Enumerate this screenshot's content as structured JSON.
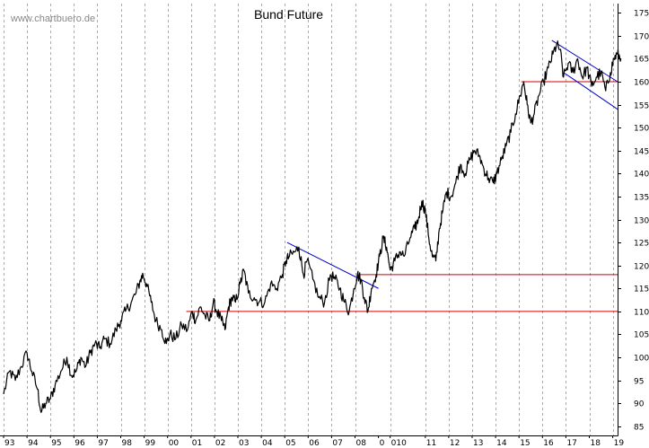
{
  "chart_data": {
    "type": "line",
    "title": "Bund Future",
    "source_label": "www.chartbuero.de",
    "ylim": [
      83,
      177
    ],
    "y_ticks": [
      85,
      90,
      95,
      100,
      105,
      110,
      115,
      120,
      125,
      130,
      135,
      140,
      145,
      150,
      155,
      160,
      165,
      170,
      175
    ],
    "x_range": [
      1993.0,
      2019.9
    ],
    "x_ticks": [
      {
        "label": "93",
        "x": 1993
      },
      {
        "label": "94",
        "x": 1994
      },
      {
        "label": "95",
        "x": 1995
      },
      {
        "label": "96",
        "x": 1996
      },
      {
        "label": "97",
        "x": 1997
      },
      {
        "label": "98",
        "x": 1998
      },
      {
        "label": "99",
        "x": 1999
      },
      {
        "label": "00",
        "x": 2000
      },
      {
        "label": "01",
        "x": 2001
      },
      {
        "label": "02",
        "x": 2002
      },
      {
        "label": "03",
        "x": 2003
      },
      {
        "label": "04",
        "x": 2004
      },
      {
        "label": "05",
        "x": 2005
      },
      {
        "label": "06",
        "x": 2006
      },
      {
        "label": "07",
        "x": 2007
      },
      {
        "label": "08",
        "x": 2008
      },
      {
        "label": "0",
        "x": 2009
      },
      {
        "label": "010",
        "x": 2009.5
      },
      {
        "label": "11",
        "x": 2011
      },
      {
        "label": "12",
        "x": 2012
      },
      {
        "label": "13",
        "x": 2013
      },
      {
        "label": "14",
        "x": 2014
      },
      {
        "label": "15",
        "x": 2015
      },
      {
        "label": "16",
        "x": 2016
      },
      {
        "label": "17",
        "x": 2017
      },
      {
        "label": "18",
        "x": 2018
      },
      {
        "label": "19",
        "x": 2019
      }
    ],
    "grid": {
      "vertical": true,
      "horizontal": false
    },
    "series": [
      {
        "color": "#000000",
        "points": [
          [
            1993.0,
            92
          ],
          [
            1993.25,
            97
          ],
          [
            1993.5,
            95
          ],
          [
            1993.75,
            98
          ],
          [
            1994.0,
            101
          ],
          [
            1994.2,
            97
          ],
          [
            1994.45,
            93
          ],
          [
            1994.6,
            88
          ],
          [
            1994.8,
            90
          ],
          [
            1995.0,
            91
          ],
          [
            1995.2,
            94
          ],
          [
            1995.45,
            97
          ],
          [
            1995.7,
            100
          ],
          [
            1995.9,
            96
          ],
          [
            1996.1,
            97
          ],
          [
            1996.3,
            100
          ],
          [
            1996.5,
            98
          ],
          [
            1996.7,
            101
          ],
          [
            1996.9,
            103
          ],
          [
            1997.1,
            102
          ],
          [
            1997.3,
            104
          ],
          [
            1997.55,
            103
          ],
          [
            1997.8,
            106
          ],
          [
            1998.0,
            108
          ],
          [
            1998.2,
            110
          ],
          [
            1998.45,
            112
          ],
          [
            1998.65,
            114
          ],
          [
            1998.85,
            117
          ],
          [
            1998.95,
            118
          ],
          [
            1999.1,
            116
          ],
          [
            1999.3,
            112
          ],
          [
            1999.5,
            108
          ],
          [
            1999.75,
            106
          ],
          [
            1999.95,
            103
          ],
          [
            2000.1,
            105
          ],
          [
            2000.35,
            104
          ],
          [
            2000.6,
            107
          ],
          [
            2000.85,
            106
          ],
          [
            2001.05,
            110
          ],
          [
            2001.2,
            108
          ],
          [
            2001.4,
            111
          ],
          [
            2001.6,
            109
          ],
          [
            2001.8,
            108
          ],
          [
            2001.95,
            112
          ],
          [
            2002.1,
            110
          ],
          [
            2002.3,
            108
          ],
          [
            2002.45,
            106
          ],
          [
            2002.6,
            111
          ],
          [
            2002.75,
            113
          ],
          [
            2002.9,
            112
          ],
          [
            2003.1,
            116
          ],
          [
            2003.25,
            119
          ],
          [
            2003.45,
            114
          ],
          [
            2003.7,
            113
          ],
          [
            2003.9,
            112
          ],
          [
            2004.15,
            112
          ],
          [
            2004.4,
            116
          ],
          [
            2004.65,
            115
          ],
          [
            2004.9,
            118
          ],
          [
            2005.05,
            121
          ],
          [
            2005.2,
            122
          ],
          [
            2005.45,
            123
          ],
          [
            2005.6,
            124
          ],
          [
            2005.8,
            118
          ],
          [
            2005.95,
            121
          ],
          [
            2006.2,
            117
          ],
          [
            2006.45,
            113
          ],
          [
            2006.7,
            112
          ],
          [
            2006.95,
            118
          ],
          [
            2007.15,
            117
          ],
          [
            2007.35,
            115
          ],
          [
            2007.55,
            112
          ],
          [
            2007.75,
            110
          ],
          [
            2007.95,
            115
          ],
          [
            2008.1,
            118
          ],
          [
            2008.25,
            117
          ],
          [
            2008.4,
            113
          ],
          [
            2008.55,
            110
          ],
          [
            2008.7,
            115
          ],
          [
            2008.9,
            118
          ],
          [
            2009.05,
            122
          ],
          [
            2009.2,
            126
          ],
          [
            2009.35,
            124
          ],
          [
            2009.5,
            119
          ],
          [
            2009.7,
            121
          ],
          [
            2009.9,
            123
          ],
          [
            2010.1,
            122
          ],
          [
            2010.35,
            126
          ],
          [
            2010.55,
            128
          ],
          [
            2010.7,
            130
          ],
          [
            2010.85,
            134
          ],
          [
            2011.0,
            132
          ],
          [
            2011.15,
            126
          ],
          [
            2011.3,
            122
          ],
          [
            2011.45,
            121
          ],
          [
            2011.6,
            128
          ],
          [
            2011.75,
            132
          ],
          [
            2011.9,
            136
          ],
          [
            2012.1,
            135
          ],
          [
            2012.3,
            138
          ],
          [
            2012.5,
            142
          ],
          [
            2012.7,
            140
          ],
          [
            2012.9,
            143
          ],
          [
            2013.1,
            145
          ],
          [
            2013.3,
            144
          ],
          [
            2013.5,
            141
          ],
          [
            2013.7,
            139
          ],
          [
            2013.9,
            138
          ],
          [
            2014.05,
            140
          ],
          [
            2014.25,
            143
          ],
          [
            2014.45,
            146
          ],
          [
            2014.65,
            149
          ],
          [
            2014.85,
            153
          ],
          [
            2015.05,
            157
          ],
          [
            2015.2,
            160
          ],
          [
            2015.35,
            155
          ],
          [
            2015.5,
            151
          ],
          [
            2015.65,
            153
          ],
          [
            2015.85,
            157
          ],
          [
            2016.05,
            160
          ],
          [
            2016.25,
            163
          ],
          [
            2016.45,
            166
          ],
          [
            2016.6,
            168
          ],
          [
            2016.75,
            167
          ],
          [
            2016.9,
            161
          ],
          [
            2017.1,
            164
          ],
          [
            2017.3,
            162
          ],
          [
            2017.5,
            165
          ],
          [
            2017.7,
            161
          ],
          [
            2017.9,
            163
          ],
          [
            2018.1,
            159
          ],
          [
            2018.3,
            161
          ],
          [
            2018.5,
            162
          ],
          [
            2018.7,
            158
          ],
          [
            2018.9,
            162
          ],
          [
            2019.05,
            165
          ],
          [
            2019.2,
            166
          ],
          [
            2019.35,
            165
          ]
        ]
      }
    ],
    "annotations": [
      {
        "kind": "support",
        "color": "#d00000",
        "x1": 2000.8,
        "y1": 110,
        "x2": 2019.9,
        "y2": 110
      },
      {
        "kind": "support",
        "color": "#d00000",
        "x1": 2008.2,
        "y1": 118,
        "x2": 2019.9,
        "y2": 118
      },
      {
        "kind": "support",
        "color": "#d00000",
        "x1": 2015.1,
        "y1": 160,
        "x2": 2019.9,
        "y2": 160
      },
      {
        "kind": "trend",
        "color": "#0000c8",
        "x1": 2005.1,
        "y1": 125,
        "x2": 2009.0,
        "y2": 115
      },
      {
        "kind": "trend",
        "color": "#0000c8",
        "x1": 2016.4,
        "y1": 169,
        "x2": 2019.9,
        "y2": 160
      },
      {
        "kind": "trend",
        "color": "#0000c8",
        "x1": 2016.9,
        "y1": 162,
        "x2": 2019.5,
        "y2": 154
      }
    ]
  }
}
